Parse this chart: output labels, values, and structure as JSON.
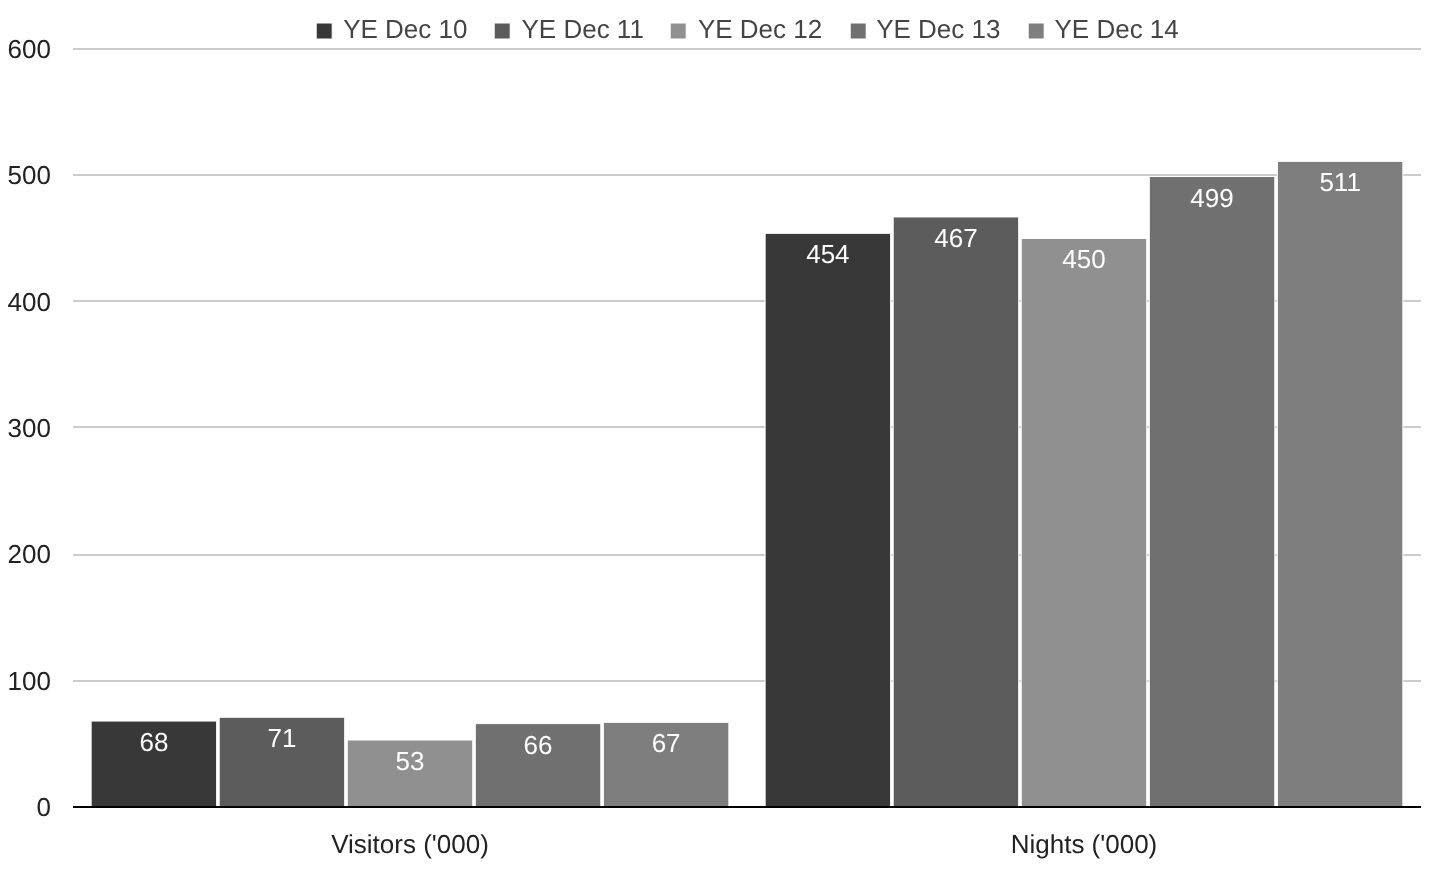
{
  "chart_data": {
    "type": "bar",
    "categories": [
      "Visitors ('000)",
      "Nights ('000)"
    ],
    "series": [
      {
        "name": "YE Dec 10",
        "color": "#383838",
        "values": [
          68,
          454
        ]
      },
      {
        "name": "YE Dec 11",
        "color": "#5c5c5c",
        "values": [
          71,
          467
        ]
      },
      {
        "name": "YE Dec 12",
        "color": "#909090",
        "values": [
          53,
          450
        ]
      },
      {
        "name": "YE Dec 13",
        "color": "#707070",
        "values": [
          66,
          499
        ]
      },
      {
        "name": "YE Dec 14",
        "color": "#7e7e7e",
        "values": [
          67,
          511
        ]
      }
    ],
    "ylim": [
      0,
      600
    ],
    "yticks": [
      0,
      100,
      200,
      300,
      400,
      500,
      600
    ],
    "grid": "y",
    "legend": "top",
    "data_labels": true
  }
}
